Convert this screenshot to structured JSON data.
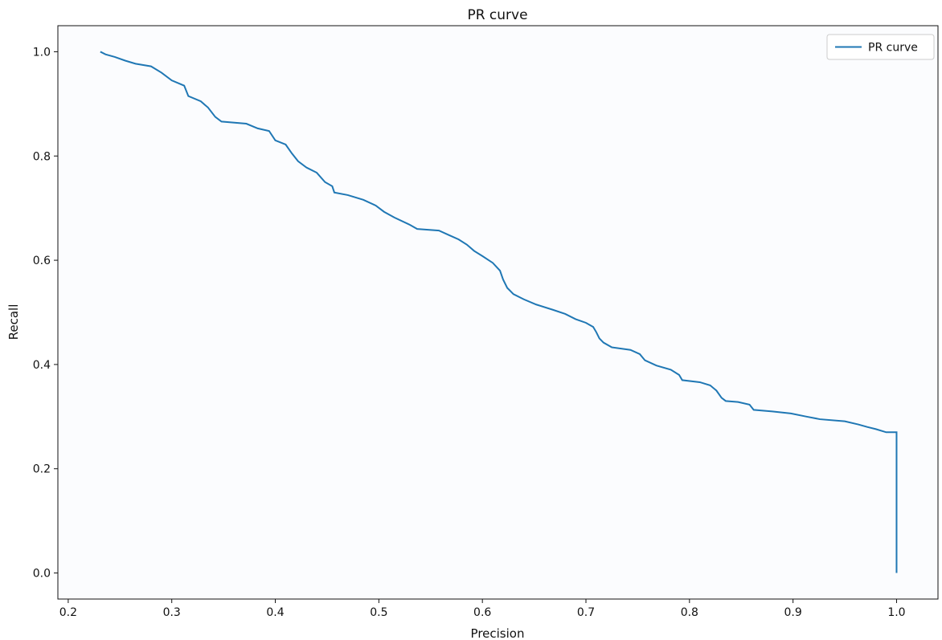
{
  "chart_data": {
    "type": "line",
    "title": "PR curve",
    "xlabel": "Precision",
    "ylabel": "Recall",
    "xlim": [
      0.19,
      1.04
    ],
    "ylim": [
      -0.05,
      1.05
    ],
    "xticks": [
      "0.2",
      "0.3",
      "0.4",
      "0.5",
      "0.6",
      "0.7",
      "0.8",
      "0.9",
      "1.0"
    ],
    "yticks": [
      "0.0",
      "0.2",
      "0.4",
      "0.6",
      "0.8",
      "1.0"
    ],
    "grid": false,
    "legend_position": "top-right",
    "colors": {
      "line": "#1f77b4",
      "plot_bg": "#fbfcfe",
      "axis": "#111111"
    },
    "series": [
      {
        "name": "PR curve",
        "points": [
          [
            0.231,
            1.0
          ],
          [
            0.236,
            0.995
          ],
          [
            0.245,
            0.99
          ],
          [
            0.255,
            0.983
          ],
          [
            0.265,
            0.977
          ],
          [
            0.28,
            0.972
          ],
          [
            0.29,
            0.96
          ],
          [
            0.3,
            0.945
          ],
          [
            0.312,
            0.935
          ],
          [
            0.316,
            0.915
          ],
          [
            0.328,
            0.905
          ],
          [
            0.335,
            0.893
          ],
          [
            0.342,
            0.875
          ],
          [
            0.348,
            0.866
          ],
          [
            0.372,
            0.862
          ],
          [
            0.383,
            0.853
          ],
          [
            0.394,
            0.848
          ],
          [
            0.4,
            0.83
          ],
          [
            0.41,
            0.822
          ],
          [
            0.416,
            0.805
          ],
          [
            0.422,
            0.79
          ],
          [
            0.43,
            0.778
          ],
          [
            0.44,
            0.768
          ],
          [
            0.448,
            0.75
          ],
          [
            0.455,
            0.742
          ],
          [
            0.457,
            0.73
          ],
          [
            0.47,
            0.725
          ],
          [
            0.485,
            0.716
          ],
          [
            0.497,
            0.705
          ],
          [
            0.505,
            0.693
          ],
          [
            0.515,
            0.682
          ],
          [
            0.53,
            0.668
          ],
          [
            0.537,
            0.66
          ],
          [
            0.558,
            0.657
          ],
          [
            0.568,
            0.648
          ],
          [
            0.577,
            0.64
          ],
          [
            0.585,
            0.63
          ],
          [
            0.592,
            0.618
          ],
          [
            0.6,
            0.608
          ],
          [
            0.61,
            0.595
          ],
          [
            0.617,
            0.58
          ],
          [
            0.62,
            0.563
          ],
          [
            0.624,
            0.547
          ],
          [
            0.63,
            0.535
          ],
          [
            0.64,
            0.525
          ],
          [
            0.652,
            0.515
          ],
          [
            0.668,
            0.505
          ],
          [
            0.68,
            0.497
          ],
          [
            0.69,
            0.487
          ],
          [
            0.7,
            0.48
          ],
          [
            0.707,
            0.472
          ],
          [
            0.71,
            0.462
          ],
          [
            0.713,
            0.45
          ],
          [
            0.717,
            0.442
          ],
          [
            0.725,
            0.433
          ],
          [
            0.743,
            0.428
          ],
          [
            0.752,
            0.42
          ],
          [
            0.757,
            0.408
          ],
          [
            0.768,
            0.398
          ],
          [
            0.782,
            0.39
          ],
          [
            0.79,
            0.38
          ],
          [
            0.793,
            0.37
          ],
          [
            0.81,
            0.366
          ],
          [
            0.82,
            0.36
          ],
          [
            0.826,
            0.35
          ],
          [
            0.831,
            0.336
          ],
          [
            0.835,
            0.33
          ],
          [
            0.847,
            0.328
          ],
          [
            0.858,
            0.323
          ],
          [
            0.862,
            0.313
          ],
          [
            0.88,
            0.31
          ],
          [
            0.898,
            0.306
          ],
          [
            0.913,
            0.3
          ],
          [
            0.926,
            0.295
          ],
          [
            0.95,
            0.291
          ],
          [
            0.963,
            0.285
          ],
          [
            0.972,
            0.28
          ],
          [
            0.98,
            0.276
          ],
          [
            0.99,
            0.27
          ],
          [
            1.0,
            0.27
          ],
          [
            1.0,
            0.0
          ]
        ]
      }
    ]
  }
}
